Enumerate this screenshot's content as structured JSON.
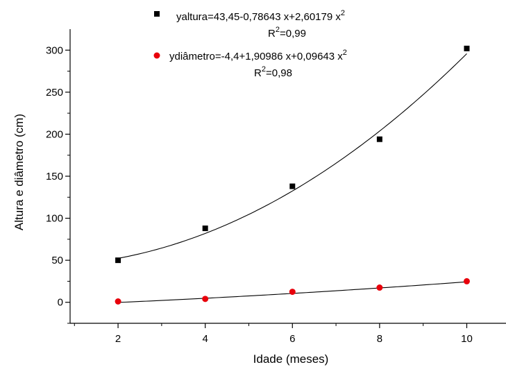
{
  "chart_data": {
    "type": "scatter",
    "xlabel": "Idade (meses)",
    "ylabel": "Altura e diâmetro (cm)",
    "xlim": [
      0.9,
      10.9
    ],
    "ylim": [
      -25,
      325
    ],
    "x_ticks": [
      2,
      4,
      6,
      8,
      10
    ],
    "y_ticks": [
      0,
      50,
      100,
      150,
      200,
      250,
      300
    ],
    "x_minor_ticks": [
      1,
      3,
      5,
      7,
      9
    ],
    "y_minor_ticks": [
      -25,
      25,
      75,
      125,
      175,
      225,
      275
    ],
    "grid": false,
    "legend_position": "top-center",
    "series": [
      {
        "label": "yaltura",
        "equation_main": "yaltura=43,45-0,78643 x+2,60179 x",
        "equation_sup": "2",
        "r2_prefix": "R",
        "r2_sup": "2",
        "r2_value": "=0,99",
        "marker": "square",
        "color": "#000000",
        "x": [
          2,
          4,
          6,
          8,
          10
        ],
        "y": [
          50,
          88,
          138,
          194,
          302
        ],
        "fit": {
          "a": 43.45,
          "b": -0.78643,
          "c": 2.60179
        }
      },
      {
        "label": "ydiâmetro",
        "equation_main": "ydiâmetro=-4,4+1,90986 x+0,09643 x",
        "equation_sup": "2",
        "r2_prefix": "R",
        "r2_sup": "2",
        "r2_value": "=0,98",
        "marker": "circle",
        "color": "#e8000b",
        "x": [
          2,
          4,
          6,
          8,
          10
        ],
        "y": [
          1,
          4,
          12.5,
          17.5,
          25
        ],
        "fit": {
          "a": -4.4,
          "b": 1.90986,
          "c": 0.09643
        }
      }
    ]
  }
}
